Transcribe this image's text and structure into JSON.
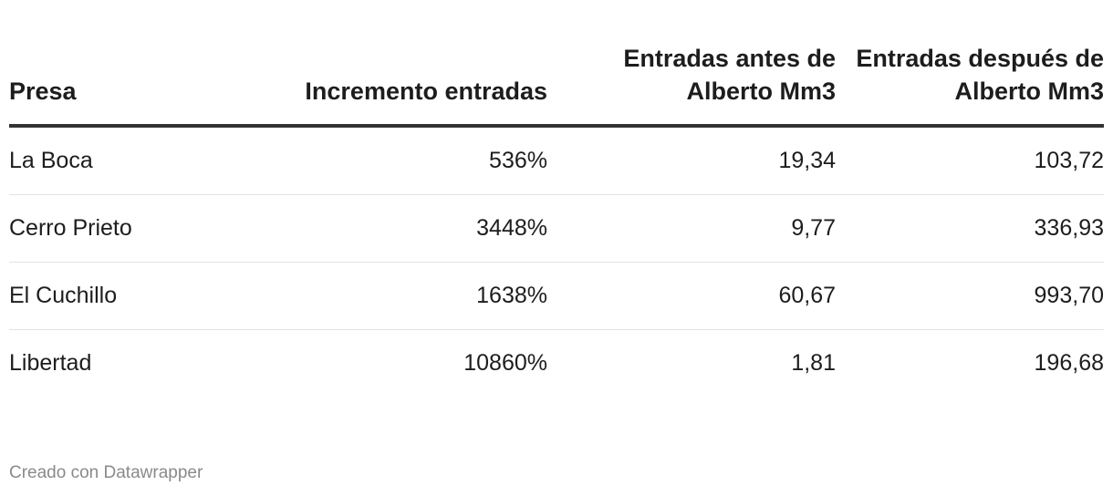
{
  "chart_data": {
    "type": "table",
    "columns": [
      "Presa",
      "Incremento entradas",
      "Entradas antes de Alberto Mm3",
      "Entradas después de Alberto Mm3"
    ],
    "rows": [
      [
        "La Boca",
        "536%",
        "19,34",
        "103,72"
      ],
      [
        "Cerro Prieto",
        "3448%",
        "9,77",
        "336,93"
      ],
      [
        "El Cuchillo",
        "1638%",
        "60,67",
        "993,70"
      ],
      [
        "Libertad",
        "10860%",
        "1,81",
        "196,68"
      ]
    ]
  },
  "footer": {
    "credit": "Creado con Datawrapper"
  },
  "colors": {
    "header_rule": "#333333",
    "row_divider": "#e2e2e2",
    "footer_text": "#8a8a8a"
  }
}
